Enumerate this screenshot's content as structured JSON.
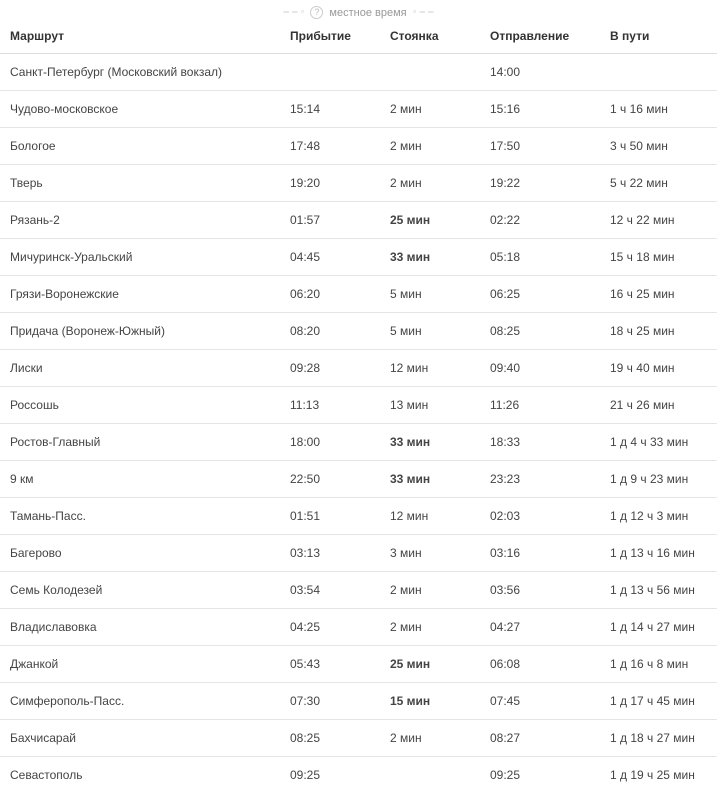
{
  "localTimeLabel": "местное время",
  "headers": {
    "route": "Маршрут",
    "arrival": "Прибытие",
    "stop": "Стоянка",
    "departure": "Отправление",
    "journey": "В пути"
  },
  "rows": [
    {
      "station": "Санкт-Петербург (Московский вокзал)",
      "arrival": "",
      "stop": "",
      "stopBold": false,
      "departure": "14:00",
      "journey": ""
    },
    {
      "station": "Чудово-московское",
      "arrival": "15:14",
      "stop": "2 мин",
      "stopBold": false,
      "departure": "15:16",
      "journey": "1 ч 16 мин"
    },
    {
      "station": "Бологое",
      "arrival": "17:48",
      "stop": "2 мин",
      "stopBold": false,
      "departure": "17:50",
      "journey": "3 ч 50 мин"
    },
    {
      "station": "Тверь",
      "arrival": "19:20",
      "stop": "2 мин",
      "stopBold": false,
      "departure": "19:22",
      "journey": "5 ч 22 мин"
    },
    {
      "station": "Рязань-2",
      "arrival": "01:57",
      "stop": "25 мин",
      "stopBold": true,
      "departure": "02:22",
      "journey": "12 ч 22 мин"
    },
    {
      "station": "Мичуринск-Уральский",
      "arrival": "04:45",
      "stop": "33 мин",
      "stopBold": true,
      "departure": "05:18",
      "journey": "15 ч 18 мин"
    },
    {
      "station": "Грязи-Воронежские",
      "arrival": "06:20",
      "stop": "5 мин",
      "stopBold": false,
      "departure": "06:25",
      "journey": "16 ч 25 мин"
    },
    {
      "station": "Придача (Воронеж-Южный)",
      "arrival": "08:20",
      "stop": "5 мин",
      "stopBold": false,
      "departure": "08:25",
      "journey": "18 ч 25 мин"
    },
    {
      "station": "Лиски",
      "arrival": "09:28",
      "stop": "12 мин",
      "stopBold": false,
      "departure": "09:40",
      "journey": "19 ч 40 мин"
    },
    {
      "station": "Россошь",
      "arrival": "11:13",
      "stop": "13 мин",
      "stopBold": false,
      "departure": "11:26",
      "journey": "21 ч 26 мин"
    },
    {
      "station": "Ростов-Главный",
      "arrival": "18:00",
      "stop": "33 мин",
      "stopBold": true,
      "departure": "18:33",
      "journey": "1 д 4 ч 33 мин"
    },
    {
      "station": "9 км",
      "arrival": "22:50",
      "stop": "33 мин",
      "stopBold": true,
      "departure": "23:23",
      "journey": "1 д 9 ч 23 мин"
    },
    {
      "station": "Тамань-Пасс.",
      "arrival": "01:51",
      "stop": "12 мин",
      "stopBold": false,
      "departure": "02:03",
      "journey": "1 д 12 ч 3 мин"
    },
    {
      "station": "Багерово",
      "arrival": "03:13",
      "stop": "3 мин",
      "stopBold": false,
      "departure": "03:16",
      "journey": "1 д 13 ч 16 мин"
    },
    {
      "station": "Семь Колодезей",
      "arrival": "03:54",
      "stop": "2 мин",
      "stopBold": false,
      "departure": "03:56",
      "journey": "1 д 13 ч 56 мин"
    },
    {
      "station": "Владиславовка",
      "arrival": "04:25",
      "stop": "2 мин",
      "stopBold": false,
      "departure": "04:27",
      "journey": "1 д 14 ч 27 мин"
    },
    {
      "station": "Джанкой",
      "arrival": "05:43",
      "stop": "25 мин",
      "stopBold": true,
      "departure": "06:08",
      "journey": "1 д 16 ч 8 мин"
    },
    {
      "station": "Симферополь-Пасс.",
      "arrival": "07:30",
      "stop": "15 мин",
      "stopBold": true,
      "departure": "07:45",
      "journey": "1 д 17 ч 45 мин"
    },
    {
      "station": "Бахчисарай",
      "arrival": "08:25",
      "stop": "2 мин",
      "stopBold": false,
      "departure": "08:27",
      "journey": "1 д 18 ч 27 мин"
    },
    {
      "station": "Севастополь",
      "arrival": "09:25",
      "stop": "",
      "stopBold": false,
      "departure": "09:25",
      "journey": "1 д 19 ч 25 мин"
    }
  ],
  "colors": {
    "text": "#333333",
    "muted": "#999999",
    "border": "#e5e5e5",
    "headerBorder": "#dddddd"
  }
}
